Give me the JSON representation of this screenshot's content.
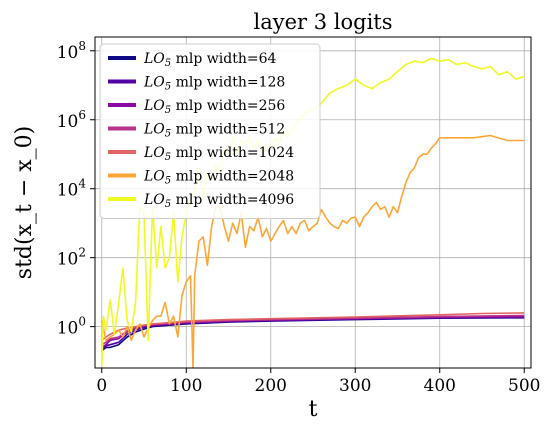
{
  "chart_data": {
    "type": "line",
    "title": "layer 3 logits",
    "xlabel": "t",
    "ylabel": "std(x_t − x_0)",
    "xlim": [
      -8,
      508
    ],
    "ylim_log10": [
      -1.2,
      8.4
    ],
    "y_scale": "log",
    "grid": true,
    "legend_position": "upper-left",
    "x_ticks": [
      0,
      100,
      200,
      300,
      400,
      500
    ],
    "x_tick_labels": [
      "0",
      "100",
      "200",
      "300",
      "400",
      "500"
    ],
    "y_ticks_log10": [
      0,
      2,
      4,
      6,
      8
    ],
    "y_tick_exponents": [
      "0",
      "2",
      "4",
      "6",
      "8"
    ],
    "series": [
      {
        "name": "LO5 mlp width=64",
        "color": "#0d0887",
        "points": [
          [
            0,
            0.2
          ],
          [
            5,
            0.25
          ],
          [
            10,
            0.25
          ],
          [
            20,
            0.3
          ],
          [
            30,
            0.5
          ],
          [
            40,
            0.7
          ],
          [
            50,
            0.85
          ],
          [
            60,
            1.0
          ],
          [
            80,
            1.1
          ],
          [
            100,
            1.2
          ],
          [
            150,
            1.35
          ],
          [
            200,
            1.45
          ],
          [
            300,
            1.6
          ],
          [
            400,
            1.75
          ],
          [
            500,
            1.8
          ]
        ]
      },
      {
        "name": "LO5 mlp width=128",
        "color": "#5302a3",
        "points": [
          [
            0,
            0.2
          ],
          [
            5,
            0.28
          ],
          [
            10,
            0.3
          ],
          [
            20,
            0.35
          ],
          [
            30,
            0.6
          ],
          [
            40,
            0.8
          ],
          [
            50,
            0.95
          ],
          [
            60,
            1.05
          ],
          [
            80,
            1.15
          ],
          [
            100,
            1.25
          ],
          [
            150,
            1.4
          ],
          [
            200,
            1.5
          ],
          [
            300,
            1.65
          ],
          [
            400,
            1.8
          ],
          [
            500,
            1.85
          ]
        ]
      },
      {
        "name": "LO5 mlp width=256",
        "color": "#8b0aa5",
        "points": [
          [
            0,
            0.25
          ],
          [
            5,
            0.3
          ],
          [
            10,
            0.4
          ],
          [
            20,
            0.45
          ],
          [
            30,
            0.7
          ],
          [
            40,
            0.9
          ],
          [
            50,
            1.05
          ],
          [
            60,
            1.1
          ],
          [
            80,
            1.2
          ],
          [
            100,
            1.3
          ],
          [
            150,
            1.45
          ],
          [
            200,
            1.55
          ],
          [
            300,
            1.7
          ],
          [
            400,
            1.85
          ],
          [
            500,
            1.95
          ]
        ]
      },
      {
        "name": "LO5 mlp width=512",
        "color": "#b83289",
        "points": [
          [
            0,
            0.3
          ],
          [
            5,
            0.35
          ],
          [
            10,
            0.45
          ],
          [
            20,
            0.5
          ],
          [
            30,
            0.75
          ],
          [
            40,
            0.95
          ],
          [
            50,
            1.1
          ],
          [
            60,
            1.15
          ],
          [
            80,
            1.25
          ],
          [
            100,
            1.35
          ],
          [
            150,
            1.5
          ],
          [
            200,
            1.6
          ],
          [
            300,
            1.75
          ],
          [
            400,
            1.95
          ],
          [
            500,
            2.1
          ]
        ]
      },
      {
        "name": "LO5 mlp width=1024",
        "color": "#e16462",
        "points": [
          [
            0,
            0.4
          ],
          [
            5,
            0.5
          ],
          [
            10,
            0.6
          ],
          [
            20,
            0.8
          ],
          [
            30,
            0.9
          ],
          [
            40,
            1.0
          ],
          [
            50,
            1.1
          ],
          [
            60,
            1.2
          ],
          [
            80,
            1.3
          ],
          [
            100,
            1.45
          ],
          [
            150,
            1.6
          ],
          [
            200,
            1.7
          ],
          [
            300,
            1.9
          ],
          [
            400,
            2.2
          ],
          [
            450,
            2.4
          ],
          [
            500,
            2.5
          ]
        ]
      },
      {
        "name": "LO5 mlp width=2048",
        "color": "#fca636",
        "points": [
          [
            0,
            1.5
          ],
          [
            5,
            0.4
          ],
          [
            10,
            0.5
          ],
          [
            15,
            0.6
          ],
          [
            20,
            0.8
          ],
          [
            25,
            0.5
          ],
          [
            30,
            1.0
          ],
          [
            35,
            0.4
          ],
          [
            40,
            0.8
          ],
          [
            45,
            1.2
          ],
          [
            50,
            0.5
          ],
          [
            55,
            0.9
          ],
          [
            60,
            1.5
          ],
          [
            65,
            2
          ],
          [
            70,
            2
          ],
          [
            75,
            5
          ],
          [
            80,
            1.2
          ],
          [
            85,
            2
          ],
          [
            90,
            0.5
          ],
          [
            95,
            8
          ],
          [
            100,
            20
          ],
          [
            105,
            30
          ],
          [
            108,
            0.06
          ],
          [
            110,
            30
          ],
          [
            115,
            300
          ],
          [
            120,
            400
          ],
          [
            125,
            60
          ],
          [
            130,
            800
          ],
          [
            135,
            3000
          ],
          [
            140,
            3000
          ],
          [
            145,
            800
          ],
          [
            150,
            300
          ],
          [
            155,
            1000
          ],
          [
            160,
            500
          ],
          [
            165,
            2000
          ],
          [
            170,
            200
          ],
          [
            175,
            800
          ],
          [
            180,
            600
          ],
          [
            185,
            1500
          ],
          [
            190,
            400
          ],
          [
            195,
            700
          ],
          [
            200,
            300
          ],
          [
            205,
            500
          ],
          [
            210,
            800
          ],
          [
            215,
            1200
          ],
          [
            220,
            500
          ],
          [
            225,
            800
          ],
          [
            230,
            500
          ],
          [
            235,
            1000
          ],
          [
            240,
            1200
          ],
          [
            245,
            600
          ],
          [
            250,
            800
          ],
          [
            255,
            1000
          ],
          [
            260,
            2500
          ],
          [
            265,
            1500
          ],
          [
            270,
            1000
          ],
          [
            275,
            800
          ],
          [
            280,
            700
          ],
          [
            285,
            1200
          ],
          [
            290,
            1000
          ],
          [
            295,
            1400
          ],
          [
            300,
            1500
          ],
          [
            305,
            800
          ],
          [
            310,
            1500
          ],
          [
            315,
            2000
          ],
          [
            320,
            3000
          ],
          [
            325,
            4000
          ],
          [
            330,
            2500
          ],
          [
            335,
            3000
          ],
          [
            340,
            1500
          ],
          [
            345,
            3000
          ],
          [
            350,
            2000
          ],
          [
            355,
            6000
          ],
          [
            360,
            15000
          ],
          [
            365,
            30000
          ],
          [
            370,
            40000
          ],
          [
            375,
            80000
          ],
          [
            380,
            100000
          ],
          [
            385,
            100000
          ],
          [
            390,
            150000
          ],
          [
            395,
            200000
          ],
          [
            400,
            300000
          ],
          [
            420,
            300000
          ],
          [
            440,
            300000
          ],
          [
            460,
            350000
          ],
          [
            480,
            250000
          ],
          [
            500,
            250000
          ]
        ]
      },
      {
        "name": "LO5 mlp width=4096",
        "color": "#f0f921",
        "points": [
          [
            0,
            0.07
          ],
          [
            2,
            2
          ],
          [
            5,
            0.8
          ],
          [
            10,
            6
          ],
          [
            15,
            0.6
          ],
          [
            20,
            5
          ],
          [
            25,
            50
          ],
          [
            30,
            1.5
          ],
          [
            35,
            0.7
          ],
          [
            40,
            5
          ],
          [
            45,
            3000
          ],
          [
            50,
            2000
          ],
          [
            55,
            0.4
          ],
          [
            60,
            3000
          ],
          [
            65,
            50
          ],
          [
            70,
            800
          ],
          [
            75,
            50
          ],
          [
            80,
            100
          ],
          [
            85,
            2000
          ],
          [
            90,
            20
          ],
          [
            95,
            400
          ],
          [
            100,
            2000
          ],
          [
            105,
            5000
          ],
          [
            110,
            10000
          ],
          [
            115,
            40000
          ],
          [
            120,
            5000
          ],
          [
            125,
            30000
          ],
          [
            130,
            20000
          ],
          [
            135,
            50000
          ],
          [
            140,
            30000
          ],
          [
            145,
            150000
          ],
          [
            150,
            100000
          ],
          [
            155,
            300000
          ],
          [
            160,
            100000
          ],
          [
            165,
            250000
          ],
          [
            170,
            200000
          ],
          [
            175,
            300000
          ],
          [
            180,
            150000
          ],
          [
            185,
            250000
          ],
          [
            190,
            100000
          ],
          [
            195,
            200000
          ],
          [
            200,
            150000
          ],
          [
            205,
            300000
          ],
          [
            210,
            200000
          ],
          [
            215,
            500000
          ],
          [
            220,
            300000
          ],
          [
            230,
            800000
          ],
          [
            240,
            1500000
          ],
          [
            250,
            2000000
          ],
          [
            260,
            3000000
          ],
          [
            270,
            6000000
          ],
          [
            280,
            8000000
          ],
          [
            290,
            10000000
          ],
          [
            300,
            15000000
          ],
          [
            310,
            10000000
          ],
          [
            320,
            8000000
          ],
          [
            330,
            12000000
          ],
          [
            340,
            15000000
          ],
          [
            350,
            25000000
          ],
          [
            360,
            40000000
          ],
          [
            370,
            50000000
          ],
          [
            380,
            45000000
          ],
          [
            390,
            60000000
          ],
          [
            400,
            50000000
          ],
          [
            410,
            55000000
          ],
          [
            420,
            40000000
          ],
          [
            430,
            45000000
          ],
          [
            440,
            35000000
          ],
          [
            450,
            30000000
          ],
          [
            460,
            35000000
          ],
          [
            470,
            20000000
          ],
          [
            480,
            25000000
          ],
          [
            490,
            15000000
          ],
          [
            500,
            18000000
          ]
        ]
      }
    ]
  }
}
